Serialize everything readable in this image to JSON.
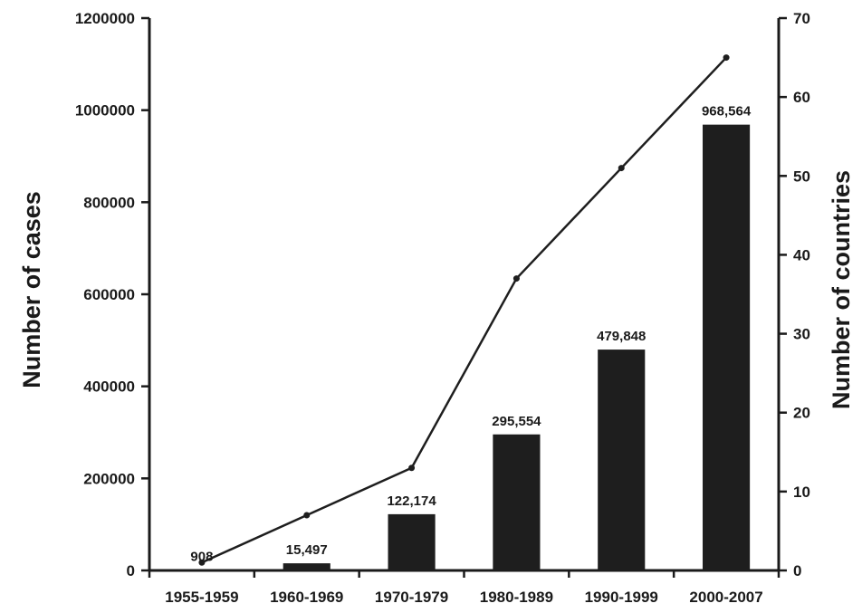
{
  "chart_data": {
    "type": "bar",
    "categories": [
      "1955-1959",
      "1960-1969",
      "1970-1979",
      "1980-1989",
      "1990-1999",
      "2000-2007"
    ],
    "series": [
      {
        "type": "bar",
        "axis": "left",
        "values": [
          908,
          15497,
          122174,
          295554,
          479848,
          968564
        ],
        "data_labels": [
          "908",
          "15,497",
          "122,174",
          "295,554",
          "479,848",
          "968,564"
        ]
      },
      {
        "type": "line",
        "axis": "right",
        "values": [
          1,
          7,
          13,
          37,
          51,
          65
        ]
      }
    ],
    "ylabel": "Number of cases",
    "y2label": "Number of countries",
    "ylim": [
      0,
      1200000
    ],
    "y2lim": [
      0,
      70
    ],
    "yticks": [
      "0",
      "200000",
      "400000",
      "600000",
      "800000",
      "1000000",
      "1200000"
    ],
    "y2ticks": [
      "0",
      "10",
      "20",
      "30",
      "40",
      "50",
      "60",
      "70"
    ],
    "bar_color": "#1e1e1e",
    "line_color": "#1e1e1e",
    "grid": false,
    "legend": "none"
  }
}
